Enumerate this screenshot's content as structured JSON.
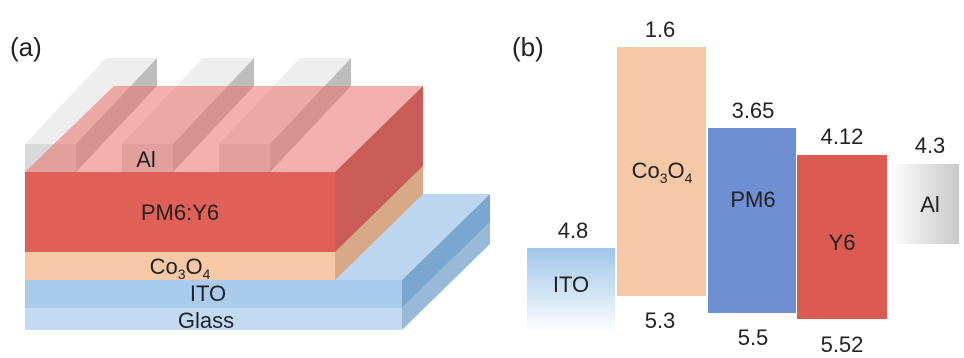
{
  "panels": {
    "a": "(a)",
    "b": "(b)"
  },
  "device_stack": {
    "electrode": "Al",
    "active_layer": "PM6:Y6",
    "hole_layer_prefix": "Co",
    "hole_layer_sub1": "3",
    "hole_layer_mid": "O",
    "hole_layer_sub2": "4",
    "anode": "ITO",
    "substrate": "Glass"
  },
  "energy_diagram": {
    "levels": [
      {
        "name": "ITO",
        "top": "4.8",
        "bottom": ""
      },
      {
        "name": "Co3O4",
        "name_prefix": "Co",
        "name_sub1": "3",
        "name_mid": "O",
        "name_sub2": "4",
        "top": "1.6",
        "bottom": "5.3"
      },
      {
        "name": "PM6",
        "top": "3.65",
        "bottom": "5.5"
      },
      {
        "name": "Y6",
        "top": "4.12",
        "bottom": "5.52"
      },
      {
        "name": "Al",
        "top": "4.3",
        "bottom": ""
      }
    ]
  },
  "colors": {
    "aluminum": "#d9d9d9",
    "active_red": "#e06058",
    "co3o4": "#f6c8a6",
    "ito": "#a9cbec",
    "glass": "#c2dbf2",
    "pm6": "#6f8fd3",
    "y6": "#dc5a52"
  }
}
